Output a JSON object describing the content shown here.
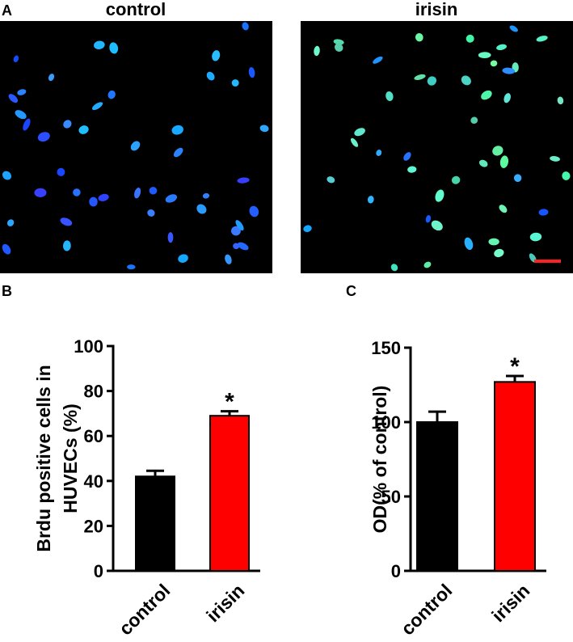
{
  "panel_a": {
    "label": "A",
    "titles": [
      "control",
      "irisin"
    ]
  },
  "chart_data": [
    {
      "type": "bar",
      "label": "B",
      "ylabel": [
        "Brdu positive cells in",
        "HUVECs (%)"
      ],
      "categories": [
        "control",
        "irisin"
      ],
      "values": [
        42,
        69
      ],
      "errors": [
        2.5,
        2
      ],
      "colors": [
        "#000000",
        "#ff0000"
      ],
      "annotations": [
        null,
        "*"
      ],
      "ylim": [
        0,
        100
      ],
      "yticks": [
        0,
        20,
        40,
        60,
        80,
        100
      ]
    },
    {
      "type": "bar",
      "label": "C",
      "ylabel": [
        "OD(% of control)"
      ],
      "categories": [
        "control",
        "irisin"
      ],
      "values": [
        100,
        127
      ],
      "errors": [
        7,
        4
      ],
      "colors": [
        "#000000",
        "#ff0000"
      ],
      "annotations": [
        null,
        "*"
      ],
      "ylim": [
        0,
        150
      ],
      "yticks": [
        0,
        50,
        100,
        150
      ]
    }
  ]
}
